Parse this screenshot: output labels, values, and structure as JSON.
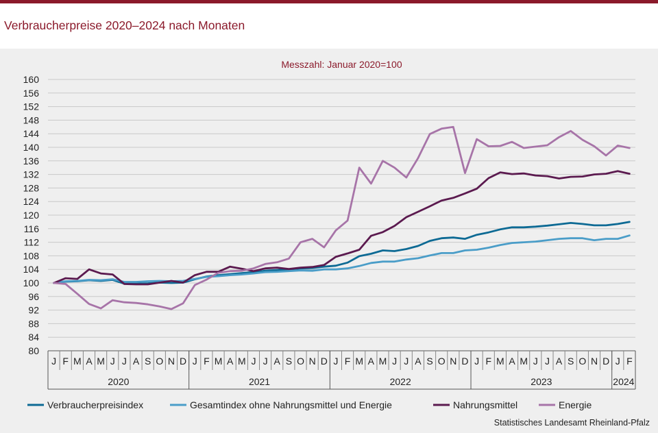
{
  "page": {
    "title": "Verbraucherpreise 2020–2024 nach Monaten",
    "source": "Statistisches Landesamt Rheinland-Pfalz"
  },
  "chart_data": {
    "type": "line",
    "subtitle": "Messzahl:  Januar  2020=100",
    "ylim": [
      80,
      160
    ],
    "y_ticks": [
      80,
      84,
      88,
      92,
      96,
      100,
      104,
      108,
      112,
      116,
      120,
      124,
      128,
      132,
      136,
      140,
      144,
      148,
      152,
      156,
      160
    ],
    "month_labels": [
      "J",
      "F",
      "M",
      "A",
      "M",
      "J",
      "J",
      "A",
      "S",
      "O",
      "N",
      "D",
      "J",
      "F",
      "M",
      "A",
      "M",
      "J",
      "J",
      "A",
      "S",
      "O",
      "N",
      "D",
      "J",
      "F",
      "M",
      "A",
      "M",
      "J",
      "J",
      "A",
      "S",
      "O",
      "N",
      "D",
      "J",
      "F",
      "M",
      "A",
      "M",
      "J",
      "J",
      "A",
      "S",
      "O",
      "N",
      "D",
      "J",
      "F"
    ],
    "years": [
      {
        "label": "2020",
        "start": 0,
        "count": 12
      },
      {
        "label": "2021",
        "start": 12,
        "count": 12
      },
      {
        "label": "2022",
        "start": 24,
        "count": 12
      },
      {
        "label": "2023",
        "start": 36,
        "count": 12
      },
      {
        "label": "2024",
        "start": 48,
        "count": 2
      }
    ],
    "grid": "horizontal",
    "legend_position": "bottom",
    "series": [
      {
        "name": "Verbraucherpreisindex",
        "color": "#0d6a94",
        "values": [
          100.0,
          100.4,
          100.5,
          100.8,
          100.6,
          100.9,
          99.8,
          99.8,
          99.9,
          100.1,
          100.0,
          100.1,
          101.1,
          101.9,
          102.3,
          102.6,
          102.9,
          103.2,
          103.6,
          103.8,
          104.0,
          104.3,
          104.4,
          104.8,
          105.1,
          106.0,
          107.9,
          108.6,
          109.6,
          109.4,
          110.0,
          110.9,
          112.4,
          113.2,
          113.4,
          113.0,
          114.2,
          114.9,
          115.8,
          116.4,
          116.4,
          116.6,
          116.9,
          117.3,
          117.7,
          117.4,
          117.0,
          117.0,
          117.4,
          118.0
        ]
      },
      {
        "name": "Gesamtindex ohne Nahrungsmittel und Energie",
        "color": "#4a9dc8",
        "values": [
          100.0,
          100.5,
          100.6,
          100.9,
          100.8,
          101.1,
          100.3,
          100.3,
          100.5,
          100.6,
          100.5,
          100.6,
          101.2,
          101.8,
          102.0,
          102.3,
          102.5,
          102.8,
          103.2,
          103.3,
          103.5,
          103.7,
          103.6,
          104.0,
          104.0,
          104.3,
          105.0,
          105.9,
          106.3,
          106.3,
          106.9,
          107.3,
          108.1,
          108.8,
          108.8,
          109.6,
          109.8,
          110.4,
          111.2,
          111.8,
          112.0,
          112.2,
          112.6,
          113.0,
          113.2,
          113.2,
          112.6,
          113.0,
          113.0,
          114.0
        ]
      },
      {
        "name": "Nahrungsmittel",
        "color": "#5b1a4f",
        "values": [
          100.0,
          101.4,
          101.2,
          104.0,
          102.8,
          102.5,
          99.7,
          99.6,
          99.6,
          100.1,
          100.6,
          100.1,
          102.3,
          103.3,
          103.3,
          104.8,
          104.2,
          103.5,
          104.3,
          104.5,
          104.1,
          104.5,
          104.7,
          105.3,
          107.7,
          108.7,
          109.8,
          113.9,
          115.0,
          116.8,
          119.4,
          121.0,
          122.6,
          124.3,
          125.1,
          126.4,
          127.8,
          130.9,
          132.6,
          132.1,
          132.3,
          131.7,
          131.5,
          130.8,
          131.3,
          131.4,
          132.0,
          132.2,
          133.0,
          132.2
        ]
      },
      {
        "name": "Energie",
        "color": "#a774a8",
        "values": [
          100.0,
          99.7,
          96.8,
          93.8,
          92.5,
          94.9,
          94.3,
          94.1,
          93.7,
          93.1,
          92.3,
          94.0,
          99.4,
          101.0,
          103.0,
          103.5,
          103.6,
          104.3,
          105.6,
          106.1,
          107.2,
          112.0,
          113.0,
          110.5,
          115.5,
          118.4,
          134.0,
          129.3,
          136.0,
          134.0,
          131.1,
          136.8,
          143.9,
          145.5,
          146.0,
          132.4,
          142.4,
          140.3,
          140.4,
          141.6,
          139.8,
          140.2,
          140.6,
          143.0,
          144.8,
          142.2,
          140.3,
          137.6,
          140.5,
          139.8
        ]
      }
    ]
  }
}
